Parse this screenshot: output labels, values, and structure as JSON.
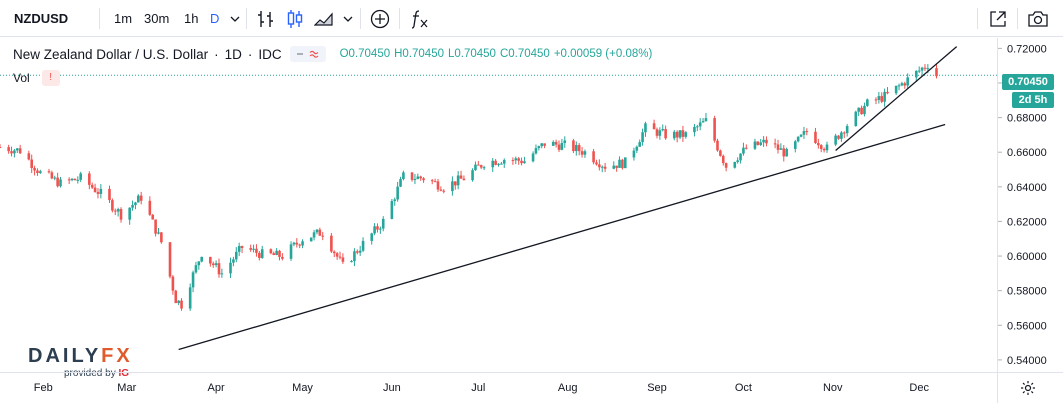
{
  "toolbar": {
    "symbol": "NZDUSD",
    "intervals": [
      "1m",
      "30m",
      "1h",
      "D"
    ],
    "active_interval": "D",
    "icons": [
      "chevron-down-icon",
      "bar-style-icon",
      "candle-style-icon",
      "area-style-icon",
      "chevron-down-icon",
      "compare-plus-icon",
      "indicators-fx-icon",
      "fullscreen-icon",
      "snapshot-camera-icon"
    ]
  },
  "legend": {
    "title": "New Zealand Dollar / U.S. Dollar",
    "sep1": "·",
    "resolution": "1D",
    "sep2": "·",
    "exchange": "IDC",
    "o": "O0.70450",
    "h": "H0.70450",
    "l": "L0.70450",
    "c": "C0.70450",
    "change": "+0.00059 (+0.08%)",
    "vol_label": "Vol",
    "vol_flag": "!"
  },
  "badges": {
    "last_price": "0.70450",
    "countdown": "2d 5h"
  },
  "logo": {
    "main": "DAILY",
    "fx": "FX",
    "provided_by": "provided by",
    "ig": "IG"
  },
  "colors": {
    "up": "#26a69a",
    "down": "#ef5350",
    "trendline": "#131722",
    "accent": "#2962ff",
    "last_price_line": "#26a69a"
  },
  "chart_data": {
    "type": "candlestick",
    "symbol": "NZDUSD",
    "timeframe": "1D",
    "x_ticks": [
      "Feb",
      "Mar",
      "Apr",
      "May",
      "Jun",
      "Jul",
      "Aug",
      "Sep",
      "Oct",
      "Nov",
      "Dec"
    ],
    "y_ticks": [
      "0.54000",
      "0.56000",
      "0.58000",
      "0.60000",
      "0.62000",
      "0.64000",
      "0.66000",
      "0.68000",
      "0.70000",
      "0.72000"
    ],
    "ylim": [
      0.533,
      0.726
    ],
    "x_range": [
      "2020-01-17",
      "2020-12-28"
    ],
    "last_price": 0.7045,
    "grid": false,
    "closes": [
      [
        "2020-01-17",
        0.663
      ],
      [
        "2020-01-24",
        0.661
      ],
      [
        "2020-01-31",
        0.648
      ],
      [
        "2020-02-07",
        0.642
      ],
      [
        "2020-02-14",
        0.645
      ],
      [
        "2020-02-21",
        0.636
      ],
      [
        "2020-02-28",
        0.624
      ],
      [
        "2020-03-06",
        0.634
      ],
      [
        "2020-03-13",
        0.608
      ],
      [
        "2020-03-18",
        0.575
      ],
      [
        "2020-03-20",
        0.572
      ],
      [
        "2020-03-27",
        0.602
      ],
      [
        "2020-04-03",
        0.59
      ],
      [
        "2020-04-10",
        0.605
      ],
      [
        "2020-04-17",
        0.601
      ],
      [
        "2020-04-24",
        0.6
      ],
      [
        "2020-05-01",
        0.61
      ],
      [
        "2020-05-08",
        0.614
      ],
      [
        "2020-05-15",
        0.594
      ],
      [
        "2020-05-22",
        0.607
      ],
      [
        "2020-05-29",
        0.62
      ],
      [
        "2020-06-05",
        0.646
      ],
      [
        "2020-06-12",
        0.645
      ],
      [
        "2020-06-19",
        0.64
      ],
      [
        "2020-06-26",
        0.645
      ],
      [
        "2020-07-03",
        0.654
      ],
      [
        "2020-07-10",
        0.656
      ],
      [
        "2020-07-17",
        0.655
      ],
      [
        "2020-07-24",
        0.665
      ],
      [
        "2020-07-31",
        0.664
      ],
      [
        "2020-08-07",
        0.66
      ],
      [
        "2020-08-14",
        0.652
      ],
      [
        "2020-08-21",
        0.654
      ],
      [
        "2020-08-28",
        0.674
      ],
      [
        "2020-09-04",
        0.67
      ],
      [
        "2020-09-11",
        0.67
      ],
      [
        "2020-09-18",
        0.678
      ],
      [
        "2020-09-25",
        0.652
      ],
      [
        "2020-10-02",
        0.662
      ],
      [
        "2020-10-09",
        0.666
      ],
      [
        "2020-10-16",
        0.659
      ],
      [
        "2020-10-23",
        0.672
      ],
      [
        "2020-10-30",
        0.662
      ],
      [
        "2020-11-06",
        0.676
      ],
      [
        "2020-11-13",
        0.688
      ],
      [
        "2020-11-20",
        0.693
      ],
      [
        "2020-11-27",
        0.702
      ],
      [
        "2020-12-04",
        0.711
      ],
      [
        "2020-12-07",
        0.7045
      ]
    ],
    "trendlines": [
      {
        "from": [
          "2020-03-19",
          0.546
        ],
        "to": [
          "2020-12-10",
          0.676
        ]
      },
      {
        "from": [
          "2020-11-02",
          0.661
        ],
        "to": [
          "2020-12-14",
          0.721
        ]
      }
    ]
  }
}
